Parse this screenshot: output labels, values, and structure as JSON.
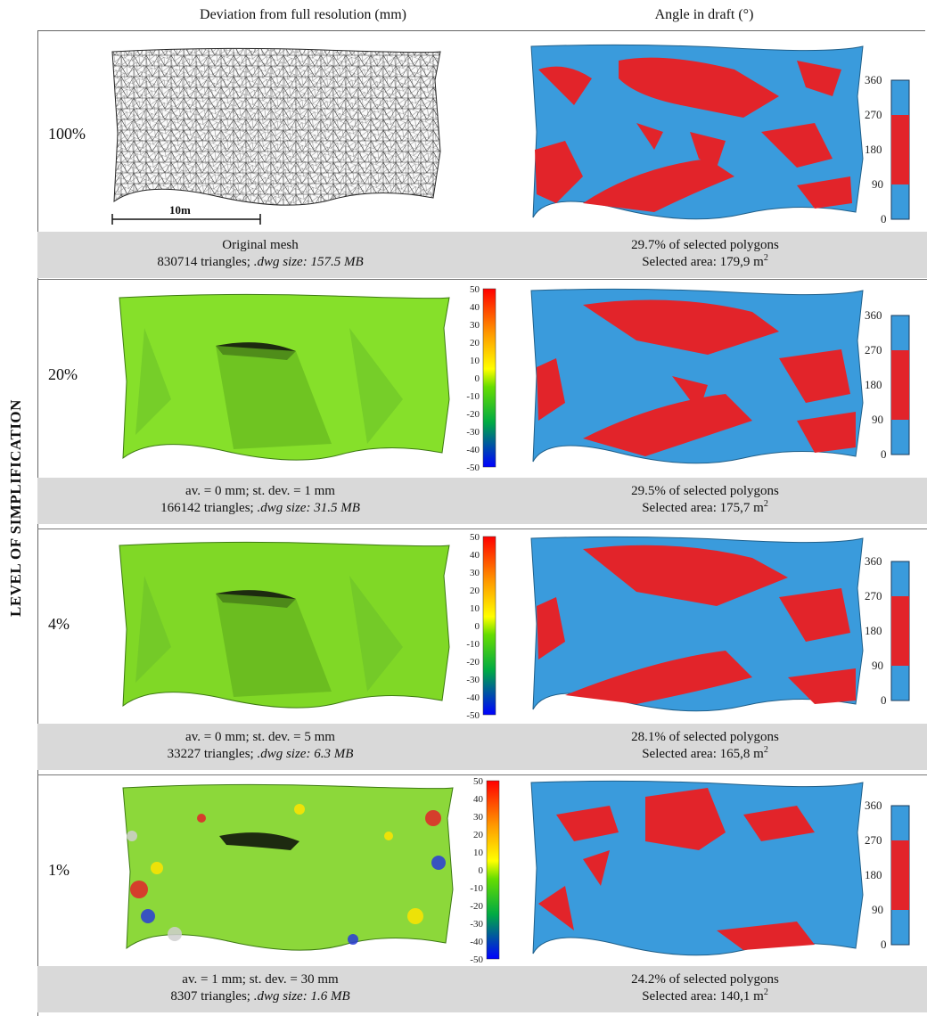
{
  "figure": {
    "column_left_title": "Deviation from full resolution (mm)",
    "column_right_title": "Angle in draft (°)",
    "y_axis_label": "LEVEL OF SIMPLIFICATION",
    "scale_bar_label": "10m",
    "deviation_scale_ticks": [
      "50",
      "40",
      "30",
      "20",
      "10",
      "0",
      "-10",
      "-20",
      "-30",
      "-40",
      "-50"
    ],
    "angle_scale_ticks": [
      "360",
      "270",
      "180",
      "90",
      "0"
    ],
    "colors": {
      "blue": "#3a9bdc",
      "red": "#e2242a",
      "green": "#7ed321",
      "caption_bg": "#d9d9d9"
    }
  },
  "rows": [
    {
      "level": "100%",
      "left_line1": "Original mesh",
      "left_line2_prefix": "830714 triangles; ",
      "left_line2_italic": ".dwg size: 157.5 MB",
      "right_line1": "29.7% of selected polygons",
      "right_line2": "Selected area: 179,9 m",
      "right_unit_sup": "2"
    },
    {
      "level": "20%",
      "left_line1": "av. = 0 mm; st. dev. = 1 mm",
      "left_line2_prefix": "166142 triangles; ",
      "left_line2_italic": ".dwg size: 31.5 MB",
      "right_line1": "29.5% of selected polygons",
      "right_line2": "Selected area: 175,7 m",
      "right_unit_sup": "2"
    },
    {
      "level": "4%",
      "left_line1": "av. = 0 mm; st. dev. = 5 mm",
      "left_line2_prefix": "33227 triangles; ",
      "left_line2_italic": ".dwg size: 6.3 MB",
      "right_line1": "28.1% of selected polygons",
      "right_line2": "Selected area: 165,8 m",
      "right_unit_sup": "2"
    },
    {
      "level": "1%",
      "left_line1": "av. = 1 mm; st. dev. = 30 mm",
      "left_line2_prefix": "8307 triangles; ",
      "left_line2_italic": ".dwg size: 1.6 MB",
      "right_line1": "24.2% of selected polygons",
      "right_line2": "Selected area: 140,1 m",
      "right_unit_sup": "2"
    }
  ]
}
